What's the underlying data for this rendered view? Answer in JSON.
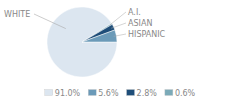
{
  "chart_data": {
    "type": "pie",
    "categories": [
      "WHITE",
      "A.I.",
      "ASIAN",
      "HISPANIC"
    ],
    "values": [
      91.0,
      0.6,
      2.8,
      5.6
    ],
    "colors": [
      "#dce6f0",
      "#7baab8",
      "#1f4e79",
      "#6b9ab8"
    ],
    "legend": "bottom",
    "legend_entries": [
      {
        "label": "91.0%",
        "color": "#dce6f0"
      },
      {
        "label": "5.6%",
        "color": "#6b9ab8"
      },
      {
        "label": "2.8%",
        "color": "#1f4e79"
      },
      {
        "label": "0.6%",
        "color": "#7baab8"
      }
    ]
  }
}
